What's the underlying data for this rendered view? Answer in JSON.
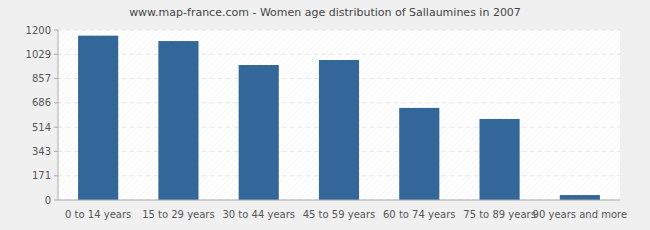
{
  "chart_data": {
    "type": "bar",
    "title": "www.map-france.com - Women age distribution of Sallaumines in 2007",
    "categories": [
      "0 to 14 years",
      "15 to 29 years",
      "30 to 44 years",
      "45 to 59 years",
      "60 to 74 years",
      "75 to 89 years",
      "90 years and more"
    ],
    "values": [
      1160,
      1122,
      953,
      988,
      650,
      572,
      35
    ],
    "color": "#336699",
    "ylim": [
      0,
      1200
    ],
    "yticks": [
      0,
      171,
      343,
      514,
      686,
      857,
      1029,
      1200
    ],
    "grid": true
  }
}
